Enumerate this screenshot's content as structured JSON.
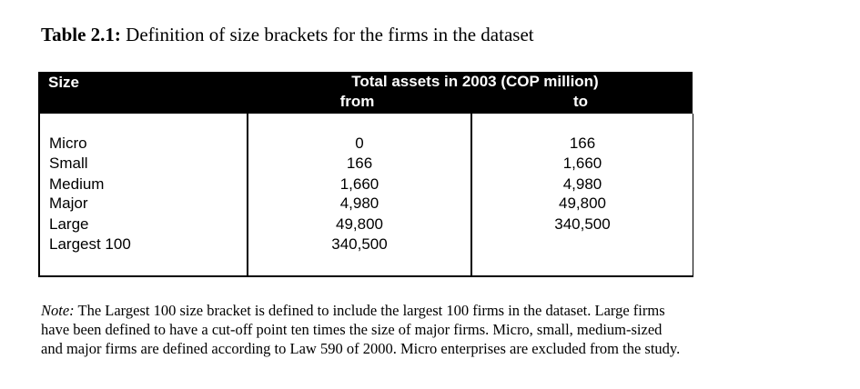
{
  "caption": {
    "label": "Table 2.1:",
    "text": "Definition of size brackets for the firms in the dataset"
  },
  "table": {
    "headers": {
      "size": "Size",
      "total": "Total assets in 2003 (COP million)",
      "from": "from",
      "to": "to"
    },
    "rows": [
      {
        "size": "Micro",
        "from": "0",
        "to": "166"
      },
      {
        "size": "Small",
        "from": "166",
        "to": "1,660"
      },
      {
        "size": "Medium",
        "from": "1,660",
        "to": "4,980"
      },
      {
        "size": "Major",
        "from": "4,980",
        "to": "49,800"
      },
      {
        "size": "Large",
        "from": "49,800",
        "to": "340,500"
      },
      {
        "size": "Largest 100",
        "from": "340,500",
        "to": ""
      }
    ]
  },
  "note": {
    "label": "Note:",
    "lines": [
      "The Largest 100 size bracket is defined to include the largest 100 firms in the dataset.  Large firms",
      "have been defined to have a cut-off point ten times the size of major firms.  Micro, small, medium-sized",
      "and major firms are defined according to Law 590 of 2000.  Micro enterprises are excluded from the study."
    ]
  }
}
